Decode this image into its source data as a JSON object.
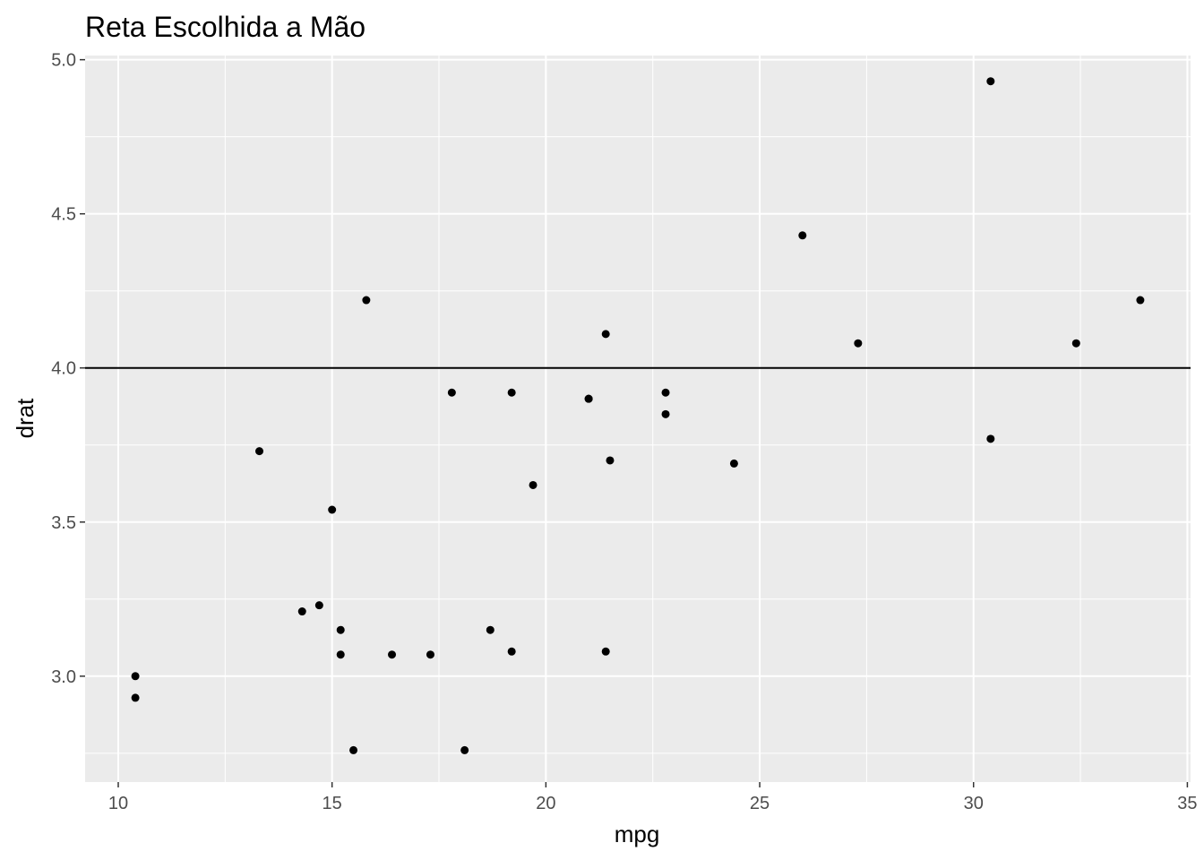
{
  "chart_data": {
    "type": "scatter",
    "title": "Reta Escolhida a Mão",
    "xlabel": "mpg",
    "ylabel": "drat",
    "xlim": [
      9.225,
      35.075
    ],
    "ylim": [
      2.6565,
      5.0135
    ],
    "x_ticks": [
      10,
      15,
      20,
      25,
      30,
      35
    ],
    "x_tick_labels": [
      "10",
      "15",
      "20",
      "25",
      "30",
      "35"
    ],
    "y_ticks": [
      3.0,
      3.5,
      4.0,
      4.5,
      5.0
    ],
    "y_tick_labels": [
      "3.0",
      "3.5",
      "4.0",
      "4.5",
      "5.0"
    ],
    "grid": true,
    "colors": {
      "panel": "#ebebeb",
      "grid": "#ffffff",
      "points": "#000000",
      "line": "#000000"
    },
    "reference_line": {
      "orientation": "horizontal",
      "y": 4.0
    },
    "points": [
      {
        "x": 21.0,
        "y": 3.9
      },
      {
        "x": 21.0,
        "y": 3.9
      },
      {
        "x": 22.8,
        "y": 3.85
      },
      {
        "x": 21.4,
        "y": 3.08
      },
      {
        "x": 18.7,
        "y": 3.15
      },
      {
        "x": 18.1,
        "y": 2.76
      },
      {
        "x": 14.3,
        "y": 3.21
      },
      {
        "x": 24.4,
        "y": 3.69
      },
      {
        "x": 22.8,
        "y": 3.92
      },
      {
        "x": 19.2,
        "y": 3.92
      },
      {
        "x": 17.8,
        "y": 3.92
      },
      {
        "x": 16.4,
        "y": 3.07
      },
      {
        "x": 17.3,
        "y": 3.07
      },
      {
        "x": 15.2,
        "y": 3.07
      },
      {
        "x": 10.4,
        "y": 2.93
      },
      {
        "x": 10.4,
        "y": 3.0
      },
      {
        "x": 14.7,
        "y": 3.23
      },
      {
        "x": 32.4,
        "y": 4.08
      },
      {
        "x": 30.4,
        "y": 4.93
      },
      {
        "x": 33.9,
        "y": 4.22
      },
      {
        "x": 21.5,
        "y": 3.7
      },
      {
        "x": 15.5,
        "y": 2.76
      },
      {
        "x": 15.2,
        "y": 3.15
      },
      {
        "x": 13.3,
        "y": 3.73
      },
      {
        "x": 19.2,
        "y": 3.08
      },
      {
        "x": 27.3,
        "y": 4.08
      },
      {
        "x": 26.0,
        "y": 4.43
      },
      {
        "x": 30.4,
        "y": 3.77
      },
      {
        "x": 15.8,
        "y": 4.22
      },
      {
        "x": 19.7,
        "y": 3.62
      },
      {
        "x": 15.0,
        "y": 3.54
      },
      {
        "x": 21.4,
        "y": 4.11
      }
    ]
  }
}
